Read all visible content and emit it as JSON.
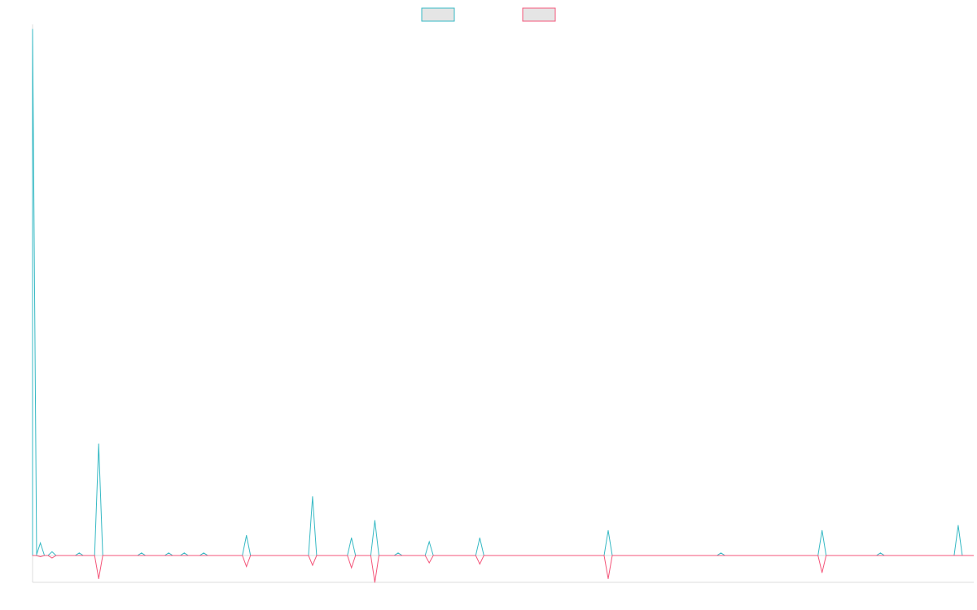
{
  "chart_data": {
    "type": "line",
    "title": "",
    "xlabel": "",
    "ylabel": "",
    "legend": {
      "placement": "top-center",
      "entries": [
        {
          "name": "",
          "border_color": "#36b9c4",
          "fill_color": "#e5e5e5"
        },
        {
          "name": "",
          "border_color": "#f4567a",
          "fill_color": "#e5e5e5"
        }
      ]
    },
    "grid": false,
    "x": [
      0,
      2,
      5,
      12,
      17,
      28,
      35,
      39,
      44,
      55,
      72,
      82,
      88,
      94,
      102,
      115,
      148,
      177,
      203,
      218,
      238
    ],
    "ylim": [
      -2.2,
      43
    ],
    "series": [
      {
        "color": "#36b9c4",
        "values": [
          42,
          1,
          0.3,
          0.2,
          8.9,
          0.2,
          0.2,
          0.2,
          0.2,
          1.6,
          4.7,
          1.4,
          2.8,
          0.2,
          1.1,
          1.4,
          2.0,
          0.2,
          2.0,
          0.2,
          2.4
        ]
      },
      {
        "color": "#f4567a",
        "values": [
          0,
          -0.1,
          -0.2,
          0,
          -1.9,
          0,
          0,
          0,
          0,
          -0.9,
          -0.8,
          -1.0,
          -2.2,
          0,
          -0.6,
          -0.7,
          -1.9,
          0,
          -1.4,
          0,
          0
        ]
      }
    ]
  }
}
